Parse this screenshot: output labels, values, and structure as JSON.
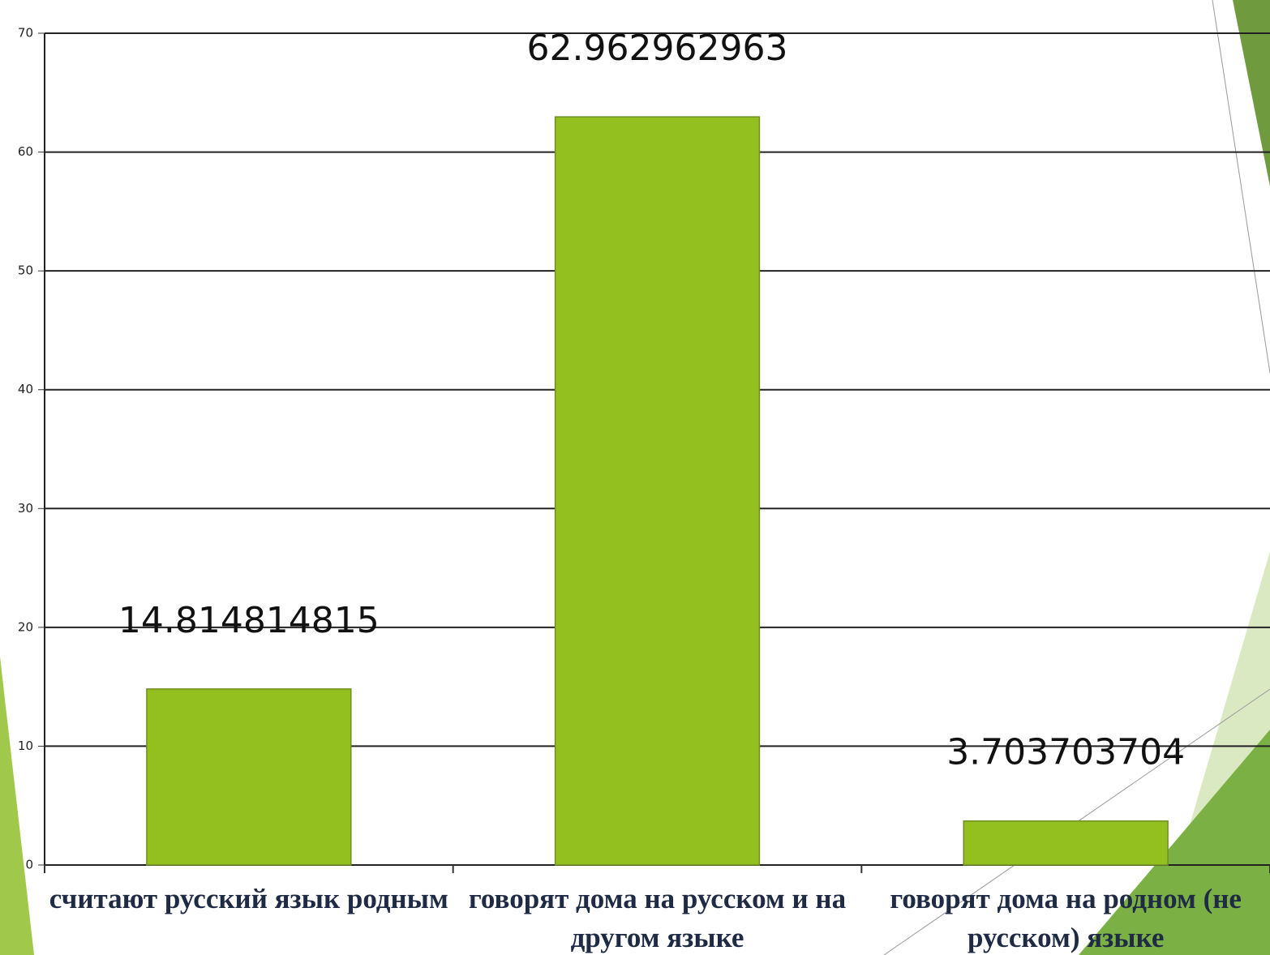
{
  "chart_data": {
    "type": "bar",
    "categories": [
      "считают русский язык родным",
      "говорят дома на русском и на другом языке",
      "говорят дома на родном (не русском) языке"
    ],
    "values": [
      14.814814815,
      62.962962963,
      3.703703704
    ],
    "color": "#93c01f",
    "ylim": [
      0,
      70
    ],
    "yticks": [
      0,
      10,
      20,
      30,
      40,
      50,
      60,
      70
    ],
    "grid": true
  }
}
